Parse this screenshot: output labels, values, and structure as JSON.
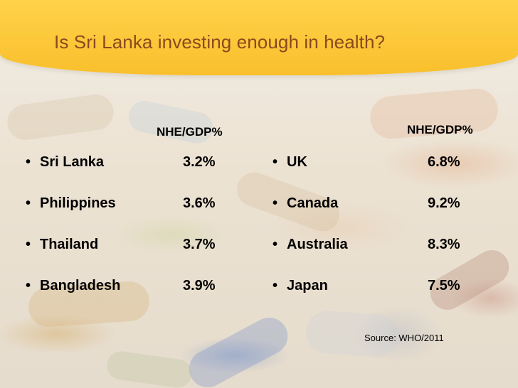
{
  "title": "Is Sri Lanka investing enough in health?",
  "left_table": {
    "header": "NHE/GDP%",
    "rows": [
      {
        "country": "Sri Lanka",
        "value": "3.2%"
      },
      {
        "country": "Philippines",
        "value": "3.6%"
      },
      {
        "country": "Thailand",
        "value": "3.7%"
      },
      {
        "country": "Bangladesh",
        "value": "3.9%"
      }
    ]
  },
  "right_table": {
    "header": "NHE/GDP%",
    "rows": [
      {
        "country": "UK",
        "value": "6.8%"
      },
      {
        "country": "Canada",
        "value": "9.2%"
      },
      {
        "country": "Australia",
        "value": "8.3%"
      },
      {
        "country": "Japan",
        "value": "7.5%"
      }
    ]
  },
  "source": "Source: WHO/2011"
}
